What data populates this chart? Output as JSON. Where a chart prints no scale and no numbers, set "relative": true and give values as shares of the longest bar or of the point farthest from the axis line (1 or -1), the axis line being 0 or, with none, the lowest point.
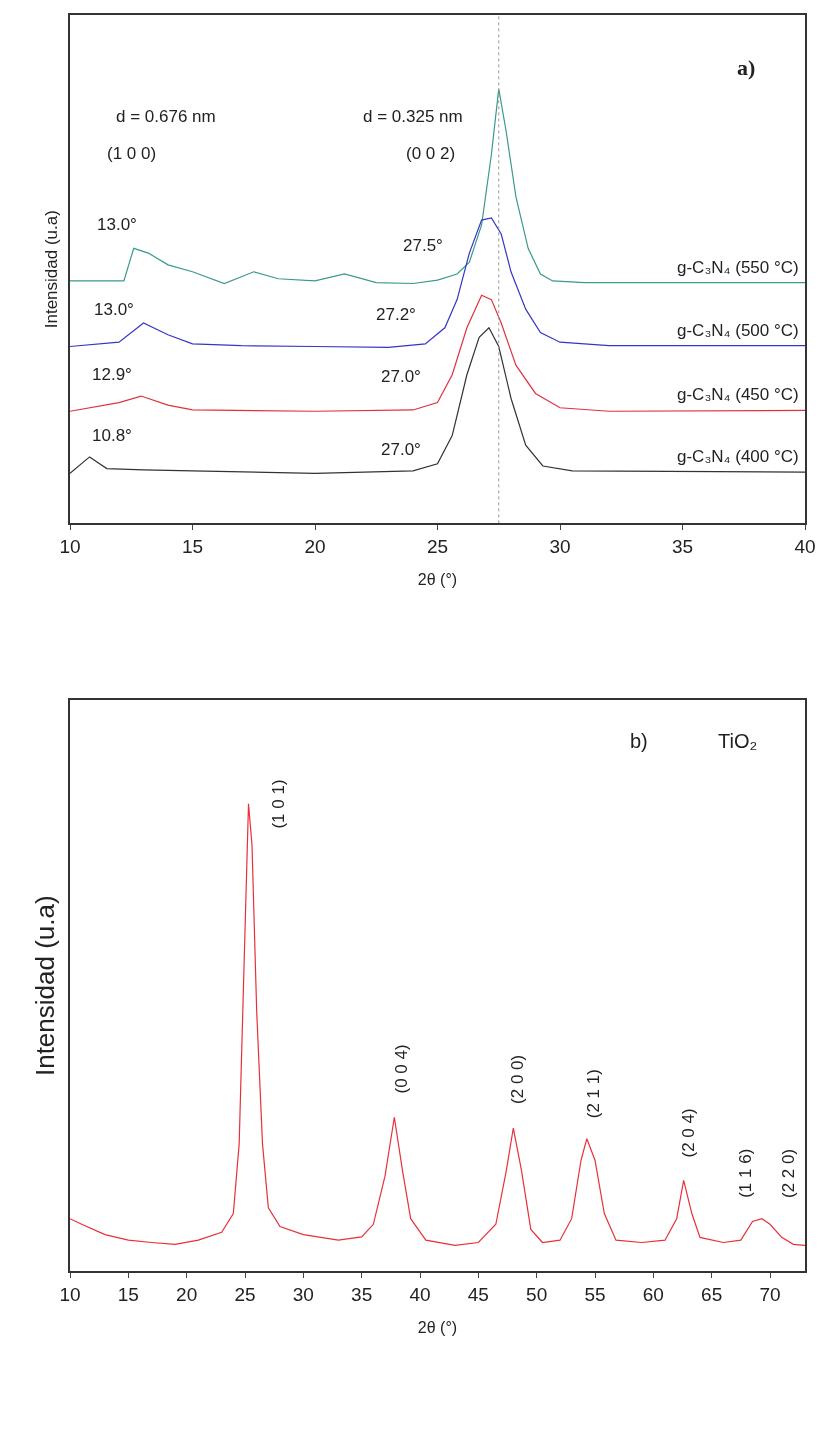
{
  "chart_data": [
    {
      "type": "line",
      "relative": true,
      "xlabel": "2θ (°)",
      "ylabel": "Intensidad (u.a)",
      "xlim": [
        10,
        40
      ],
      "xticks": [
        10,
        15,
        20,
        25,
        30,
        35,
        40
      ],
      "tick_labels": "x",
      "marker": "none",
      "line_style": "solid",
      "series": [
        {
          "name": "g-C₃N₄ (550 °C)",
          "color": "#3a9a8c",
          "x": [
            10,
            12.2,
            12.6,
            13.2,
            14,
            15,
            16.3,
            17.5,
            18.5,
            20,
            21.2,
            22.5,
            24,
            25,
            25.8,
            26.3,
            26.8,
            27.2,
            27.5,
            27.8,
            28.2,
            28.7,
            29.2,
            29.7,
            31,
            40
          ],
          "values": [
            0.558,
            0.558,
            0.633,
            0.622,
            0.595,
            0.579,
            0.552,
            0.579,
            0.563,
            0.558,
            0.574,
            0.554,
            0.552,
            0.56,
            0.574,
            0.601,
            0.687,
            0.849,
            1,
            0.903,
            0.752,
            0.633,
            0.574,
            0.558,
            0.554,
            0.554
          ]
        },
        {
          "name": "g-C₃N₄ (500 °C)",
          "color": "#3535c8",
          "x": [
            10,
            12,
            13,
            14,
            15,
            17,
            20,
            23,
            24.5,
            25.3,
            25.8,
            26.3,
            26.8,
            27.2,
            27.6,
            28,
            28.6,
            29.2,
            30,
            32,
            40
          ],
          "values": [
            0.407,
            0.417,
            0.461,
            0.434,
            0.413,
            0.409,
            0.407,
            0.405,
            0.413,
            0.45,
            0.515,
            0.622,
            0.698,
            0.703,
            0.666,
            0.579,
            0.493,
            0.439,
            0.417,
            0.409,
            0.409
          ]
        },
        {
          "name": "g-C₃N₄ (450 °C)",
          "color": "#e03040",
          "x": [
            10,
            12,
            12.9,
            14,
            15,
            20,
            24,
            25,
            25.6,
            26.2,
            26.8,
            27.2,
            27.6,
            28.2,
            29,
            30,
            32,
            40
          ],
          "values": [
            0.258,
            0.278,
            0.293,
            0.272,
            0.261,
            0.258,
            0.261,
            0.278,
            0.342,
            0.45,
            0.525,
            0.515,
            0.461,
            0.364,
            0.299,
            0.266,
            0.258,
            0.26
          ]
        },
        {
          "name": "g-C₃N₄ (400 °C)",
          "color": "#333333",
          "x": [
            10,
            10.8,
            11.5,
            13,
            15,
            20,
            24,
            25,
            25.6,
            26.2,
            26.7,
            27.1,
            27.5,
            28,
            28.6,
            29.3,
            30.5,
            40
          ],
          "values": [
            0.115,
            0.153,
            0.126,
            0.123,
            0.121,
            0.115,
            0.121,
            0.137,
            0.202,
            0.342,
            0.428,
            0.45,
            0.407,
            0.288,
            0.18,
            0.132,
            0.121,
            0.118
          ]
        }
      ],
      "ref_lines": [
        {
          "axis": "x",
          "value": 27.5,
          "color": "#999999",
          "line_style": "dotted"
        }
      ],
      "annotations": [
        "a)",
        "d = 0.676 nm",
        "(1 0 0)",
        "d = 0.325 nm",
        "(0 0 2)",
        "13.0°",
        "27.5°",
        "13.0°",
        "27.2°",
        "12.9°",
        "27.0°",
        "10.8°",
        "27.0°"
      ]
    },
    {
      "type": "line",
      "relative": true,
      "xlabel": "2θ (°)",
      "ylabel": "Intensidad (u.a)",
      "xlim": [
        10,
        73
      ],
      "xticks": [
        10,
        15,
        20,
        25,
        30,
        35,
        40,
        45,
        50,
        55,
        60,
        65,
        70
      ],
      "tick_labels": "x",
      "marker": "none",
      "line_style": "solid",
      "series": [
        {
          "color": "#e8303a",
          "x": [
            10,
            11,
            13,
            15,
            17,
            19,
            21,
            23,
            24,
            24.5,
            25,
            25.3,
            25.6,
            26,
            26.5,
            27,
            28,
            30,
            33,
            35,
            36,
            37,
            37.8,
            38.5,
            39.2,
            40.5,
            43,
            45,
            46.5,
            47.4,
            48,
            48.7,
            49.5,
            50.5,
            52,
            53,
            53.8,
            54.3,
            55,
            55.8,
            56.8,
            59,
            61,
            62,
            62.6,
            63.3,
            64,
            66,
            67.5,
            68.5,
            69.3,
            70,
            71,
            72,
            73
          ],
          "values": [
            0.112,
            0.1,
            0.078,
            0.066,
            0.061,
            0.057,
            0.066,
            0.083,
            0.123,
            0.272,
            0.728,
            1,
            0.911,
            0.557,
            0.272,
            0.135,
            0.095,
            0.078,
            0.066,
            0.073,
            0.1,
            0.203,
            0.329,
            0.215,
            0.112,
            0.066,
            0.055,
            0.061,
            0.1,
            0.215,
            0.306,
            0.215,
            0.089,
            0.061,
            0.066,
            0.112,
            0.237,
            0.283,
            0.237,
            0.123,
            0.066,
            0.061,
            0.066,
            0.112,
            0.194,
            0.123,
            0.072,
            0.061,
            0.066,
            0.106,
            0.112,
            0.1,
            0.072,
            0.057,
            0.055
          ]
        }
      ],
      "annotations": [
        "b)",
        "TiO₂",
        "(1 0 1)",
        "(0 0 4)",
        "(2 0 0)",
        "(2 1 1)",
        "(2 0 4)",
        "(1 1 6)",
        "(2 2 0)"
      ]
    }
  ]
}
